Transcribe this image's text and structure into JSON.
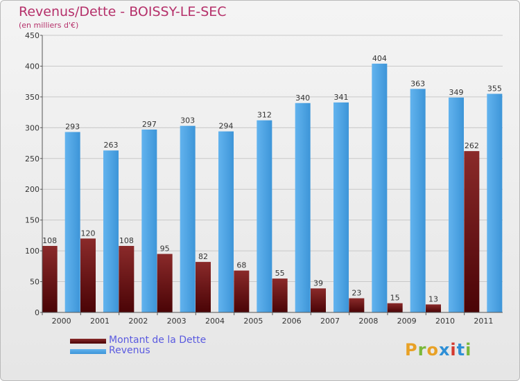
{
  "header": {
    "title": "Revenus/Dette - BOISSY-LE-SEC",
    "subtitle": "(en milliers d'€)"
  },
  "legend": {
    "debt_label": "Montant de la Dette",
    "revenue_label": "Revenus"
  },
  "logo": {
    "text": "Proxiti",
    "colors": [
      "#e8a126",
      "#7ab83a",
      "#e8a126",
      "#2e8fd6",
      "#d43a2f",
      "#2e8fd6",
      "#7ab83a"
    ]
  },
  "colors": {
    "debt": "#6b0f12",
    "revenue": "#55a8e6",
    "title": "#b5306a",
    "legend_text": "#5a5ae0"
  },
  "chart_data": {
    "type": "bar",
    "categories": [
      "2000",
      "2001",
      "2002",
      "2003",
      "2004",
      "2005",
      "2006",
      "2007",
      "2008",
      "2009",
      "2010",
      "2011"
    ],
    "series": [
      {
        "name": "Montant de la Dette",
        "values": [
          108,
          120,
          108,
          95,
          82,
          68,
          55,
          39,
          23,
          15,
          13,
          262
        ]
      },
      {
        "name": "Revenus",
        "values": [
          293,
          263,
          297,
          303,
          294,
          312,
          340,
          341,
          404,
          363,
          349,
          355
        ]
      }
    ],
    "ylim": [
      0,
      450
    ],
    "yticks": [
      0,
      50,
      100,
      150,
      200,
      250,
      300,
      350,
      400,
      450
    ],
    "grid": true,
    "legend_position": "bottom-left"
  }
}
